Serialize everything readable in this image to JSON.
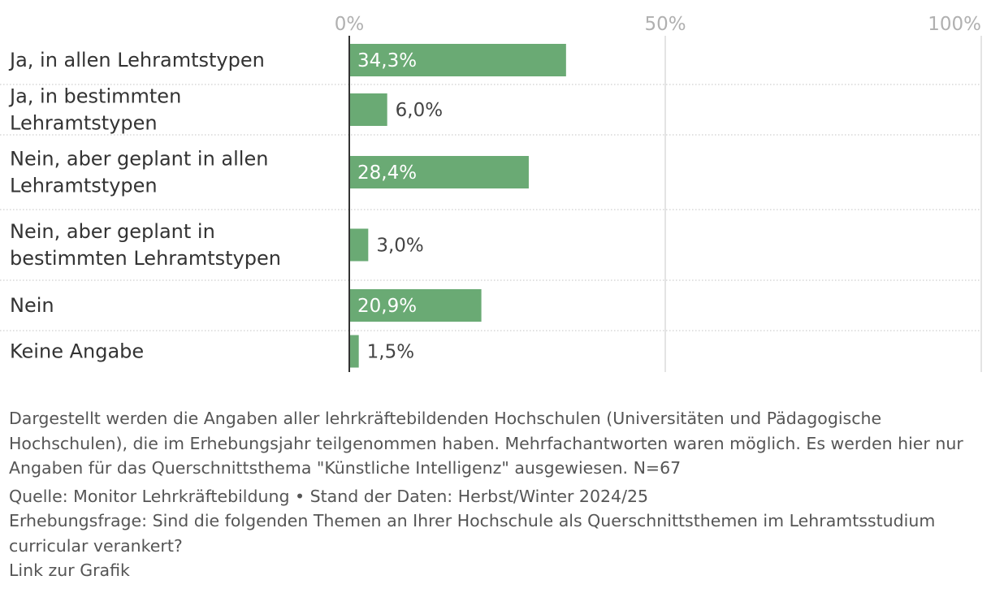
{
  "chart_data": {
    "type": "bar",
    "orientation": "horizontal",
    "categories": [
      "Ja, in allen Lehramtstypen",
      "Ja, in bestimmten Lehramtstypen",
      "Nein, aber geplant in allen Lehramtstypen",
      "Nein, aber geplant in bestimmten Lehramtstypen",
      "Nein",
      "Keine Angabe"
    ],
    "values": [
      34.3,
      6.0,
      28.4,
      3.0,
      20.9,
      1.5
    ],
    "value_labels": [
      "34,3%",
      "6,0%",
      "28,4%",
      "3,0%",
      "20,9%",
      "1,5%"
    ],
    "xlim": [
      0,
      100
    ],
    "xticks": [
      0,
      50,
      100
    ],
    "xtick_labels": [
      "0%",
      "50%",
      "100%"
    ],
    "grid": true,
    "bar_color": "#6aaa74"
  },
  "notes": {
    "description": "Dargestellt werden die Angaben aller lehrkräftebildenden Hochschulen (Universitäten und Pädagogische Hochschulen), die im Erhebungsjahr teilgenommen haben. Mehrfachantworten waren möglich. Es werden hier nur Angaben für das Querschnittsthema \"Künstliche Intelligenz\" ausgewiesen. N=67",
    "source": "Quelle: Monitor Lehrkräftebildung • Stand der Daten: Herbst/Winter 2024/25",
    "question": "Erhebungsfrage: Sind die folgenden Themen an Ihrer Hochschule als Querschnittsthemen im Lehramtsstudium curricular verankert?",
    "link": "Link zur Grafik"
  }
}
